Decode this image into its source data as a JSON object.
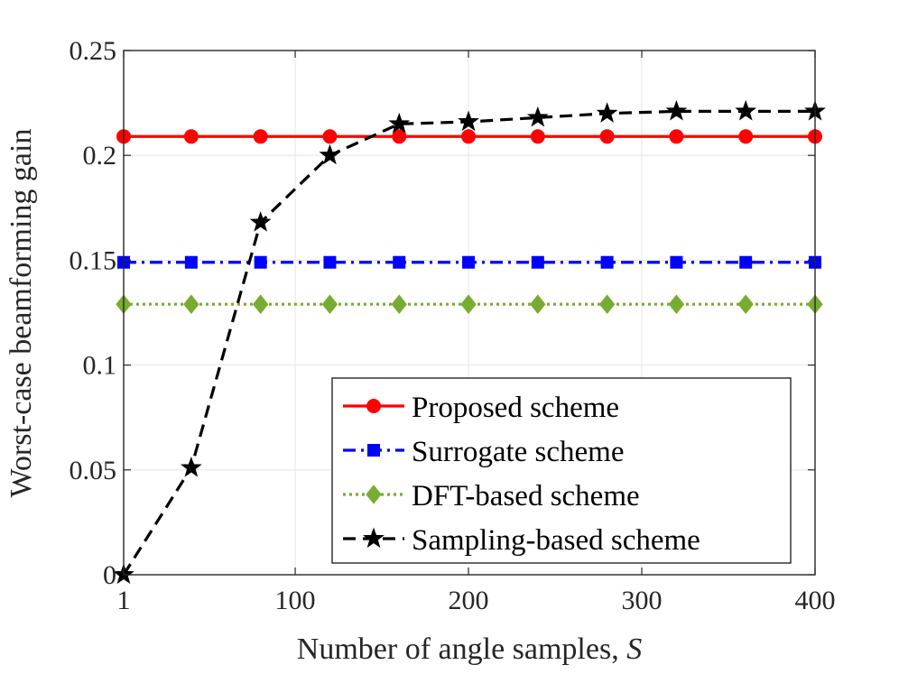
{
  "chart_data": {
    "type": "line",
    "title": "",
    "xlabel": "Number of angle samples, ",
    "xlabel_var": "S",
    "ylabel": "Worst-case beamforming gain",
    "xlim": [
      1,
      400
    ],
    "ylim": [
      0,
      0.25
    ],
    "grid": true,
    "xticks": [
      1,
      100,
      200,
      300,
      400
    ],
    "xtick_labels": [
      "1",
      "100",
      "200",
      "300",
      "400"
    ],
    "yticks": [
      0,
      0.05,
      0.1,
      0.15,
      0.2,
      0.25
    ],
    "ytick_labels": [
      "0",
      "0.05",
      "0.1",
      "0.15",
      "0.2",
      "0.25"
    ],
    "x": [
      1,
      40,
      80,
      120,
      160,
      200,
      240,
      280,
      320,
      360,
      400
    ],
    "legend_position": "bottom-right",
    "series": [
      {
        "name": "Proposed scheme",
        "color": "#ff0000",
        "marker": "circle",
        "dash": "solid",
        "values": [
          0.209,
          0.209,
          0.209,
          0.209,
          0.209,
          0.209,
          0.209,
          0.209,
          0.209,
          0.209,
          0.209
        ]
      },
      {
        "name": "Surrogate scheme",
        "color": "#0000ff",
        "marker": "square",
        "dash": "dashdot",
        "values": [
          0.149,
          0.149,
          0.149,
          0.149,
          0.149,
          0.149,
          0.149,
          0.149,
          0.149,
          0.149,
          0.149
        ]
      },
      {
        "name": "DFT-based scheme",
        "color": "#77ac30",
        "marker": "diamond",
        "dash": "dotted",
        "values": [
          0.129,
          0.129,
          0.129,
          0.129,
          0.129,
          0.129,
          0.129,
          0.129,
          0.129,
          0.129,
          0.129
        ]
      },
      {
        "name": "Sampling-based scheme",
        "color": "#000000",
        "marker": "star",
        "dash": "dashed",
        "values": [
          0.0,
          0.051,
          0.168,
          0.2,
          0.215,
          0.216,
          0.218,
          0.22,
          0.221,
          0.221,
          0.221
        ]
      }
    ]
  }
}
